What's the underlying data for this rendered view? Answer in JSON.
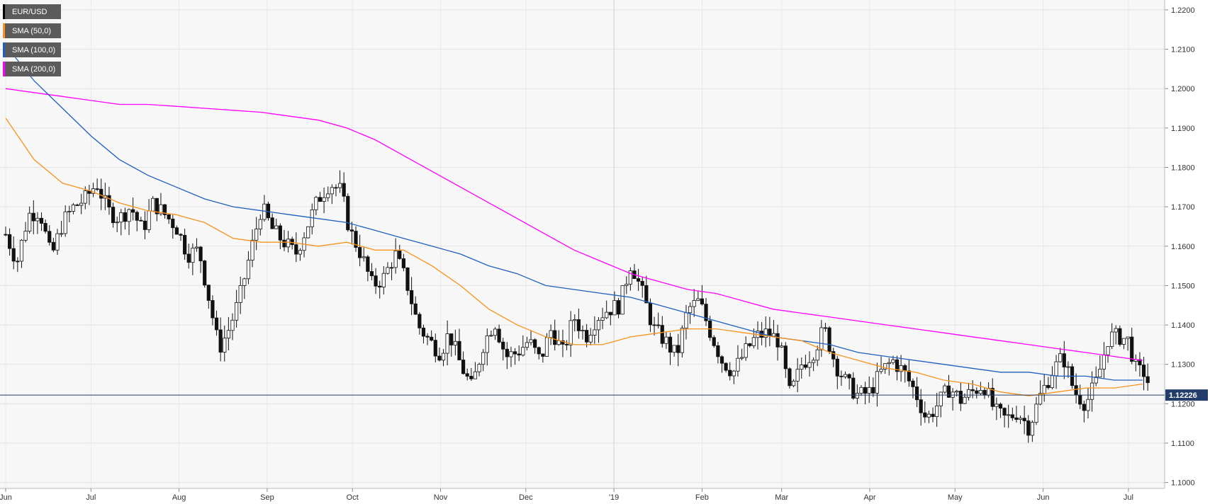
{
  "chart_data": {
    "type": "line",
    "title": "",
    "symbol": "EUR/USD",
    "legend": [
      {
        "label": "EUR/USD",
        "color": "#000000"
      },
      {
        "label": "SMA (50,0)",
        "color": "#f7931e"
      },
      {
        "label": "SMA (100,0)",
        "color": "#1f5fbf"
      },
      {
        "label": "SMA (200,0)",
        "color": "#ff00ff"
      }
    ],
    "y_axis": {
      "min": 1.0985,
      "max": 1.2225,
      "ticks": [
        "1.1000",
        "1.1100",
        "1.1200",
        "1.1300",
        "1.1400",
        "1.1500",
        "1.1600",
        "1.1700",
        "1.1800",
        "1.1900",
        "1.2000",
        "1.2100",
        "1.2200"
      ]
    },
    "x_axis": {
      "ticks": [
        {
          "label": "Jun",
          "day": 0
        },
        {
          "label": "Jul",
          "day": 30
        },
        {
          "label": "Aug",
          "day": 61
        },
        {
          "label": "Sep",
          "day": 92
        },
        {
          "label": "Oct",
          "day": 122
        },
        {
          "label": "Nov",
          "day": 153
        },
        {
          "label": "Dec",
          "day": 183
        },
        {
          "label": "'19",
          "day": 214
        },
        {
          "label": "Feb",
          "day": 245
        },
        {
          "label": "Mar",
          "day": 273
        },
        {
          "label": "Apr",
          "day": 304
        },
        {
          "label": "May",
          "day": 334
        },
        {
          "label": "Jun",
          "day": 365
        },
        {
          "label": "Jul",
          "day": 395
        }
      ],
      "max_day": 405
    },
    "current_price": {
      "value": 1.1222,
      "label": "1.12226"
    },
    "close_series": [
      [
        0,
        1.163
      ],
      [
        4,
        1.156
      ],
      [
        8,
        1.168
      ],
      [
        12,
        1.169
      ],
      [
        16,
        1.157
      ],
      [
        20,
        1.166
      ],
      [
        24,
        1.17
      ],
      [
        28,
        1.172
      ],
      [
        32,
        1.176
      ],
      [
        36,
        1.169
      ],
      [
        40,
        1.167
      ],
      [
        44,
        1.17
      ],
      [
        48,
        1.164
      ],
      [
        52,
        1.171
      ],
      [
        56,
        1.168
      ],
      [
        60,
        1.165
      ],
      [
        64,
        1.158
      ],
      [
        68,
        1.159
      ],
      [
        72,
        1.145
      ],
      [
        75,
        1.134
      ],
      [
        78,
        1.138
      ],
      [
        82,
        1.146
      ],
      [
        86,
        1.158
      ],
      [
        90,
        1.17
      ],
      [
        94,
        1.164
      ],
      [
        98,
        1.161
      ],
      [
        102,
        1.158
      ],
      [
        106,
        1.165
      ],
      [
        110,
        1.172
      ],
      [
        114,
        1.176
      ],
      [
        118,
        1.174
      ],
      [
        121,
        1.164
      ],
      [
        125,
        1.158
      ],
      [
        129,
        1.15
      ],
      [
        133,
        1.152
      ],
      [
        137,
        1.158
      ],
      [
        141,
        1.151
      ],
      [
        145,
        1.14
      ],
      [
        149,
        1.136
      ],
      [
        153,
        1.133
      ],
      [
        156,
        1.138
      ],
      [
        160,
        1.13
      ],
      [
        164,
        1.124
      ],
      [
        168,
        1.135
      ],
      [
        172,
        1.141
      ],
      [
        176,
        1.132
      ],
      [
        180,
        1.133
      ],
      [
        184,
        1.136
      ],
      [
        188,
        1.131
      ],
      [
        192,
        1.139
      ],
      [
        196,
        1.133
      ],
      [
        200,
        1.142
      ],
      [
        204,
        1.137
      ],
      [
        208,
        1.142
      ],
      [
        212,
        1.144
      ],
      [
        216,
        1.145
      ],
      [
        220,
        1.156
      ],
      [
        224,
        1.148
      ],
      [
        228,
        1.139
      ],
      [
        232,
        1.136
      ],
      [
        236,
        1.132
      ],
      [
        240,
        1.144
      ],
      [
        244,
        1.146
      ],
      [
        248,
        1.138
      ],
      [
        252,
        1.131
      ],
      [
        256,
        1.128
      ],
      [
        260,
        1.133
      ],
      [
        264,
        1.137
      ],
      [
        268,
        1.138
      ],
      [
        272,
        1.136
      ],
      [
        276,
        1.122
      ],
      [
        280,
        1.13
      ],
      [
        284,
        1.133
      ],
      [
        288,
        1.139
      ],
      [
        292,
        1.13
      ],
      [
        296,
        1.125
      ],
      [
        300,
        1.122
      ],
      [
        304,
        1.123
      ],
      [
        308,
        1.128
      ],
      [
        312,
        1.131
      ],
      [
        316,
        1.128
      ],
      [
        320,
        1.123
      ],
      [
        324,
        1.116
      ],
      [
        328,
        1.12
      ],
      [
        332,
        1.124
      ],
      [
        336,
        1.121
      ],
      [
        340,
        1.123
      ],
      [
        344,
        1.125
      ],
      [
        348,
        1.118
      ],
      [
        352,
        1.116
      ],
      [
        356,
        1.118
      ],
      [
        360,
        1.114
      ],
      [
        364,
        1.122
      ],
      [
        368,
        1.128
      ],
      [
        372,
        1.132
      ],
      [
        376,
        1.123
      ],
      [
        380,
        1.12
      ],
      [
        384,
        1.126
      ],
      [
        388,
        1.137
      ],
      [
        392,
        1.137
      ],
      [
        395,
        1.136
      ],
      [
        398,
        1.128
      ],
      [
        401,
        1.128
      ],
      [
        403,
        1.1222
      ]
    ],
    "sma50": [
      [
        0,
        1.1925
      ],
      [
        10,
        1.182
      ],
      [
        20,
        1.176
      ],
      [
        30,
        1.174
      ],
      [
        40,
        1.171
      ],
      [
        50,
        1.169
      ],
      [
        60,
        1.168
      ],
      [
        70,
        1.166
      ],
      [
        80,
        1.162
      ],
      [
        90,
        1.161
      ],
      [
        100,
        1.161
      ],
      [
        110,
        1.16
      ],
      [
        120,
        1.161
      ],
      [
        130,
        1.159
      ],
      [
        140,
        1.159
      ],
      [
        150,
        1.155
      ],
      [
        160,
        1.15
      ],
      [
        170,
        1.144
      ],
      [
        180,
        1.14
      ],
      [
        190,
        1.137
      ],
      [
        200,
        1.135
      ],
      [
        210,
        1.135
      ],
      [
        220,
        1.137
      ],
      [
        230,
        1.138
      ],
      [
        240,
        1.139
      ],
      [
        250,
        1.139
      ],
      [
        260,
        1.138
      ],
      [
        270,
        1.137
      ],
      [
        280,
        1.136
      ],
      [
        290,
        1.133
      ],
      [
        300,
        1.131
      ],
      [
        310,
        1.129
      ],
      [
        320,
        1.128
      ],
      [
        330,
        1.126
      ],
      [
        340,
        1.125
      ],
      [
        350,
        1.123
      ],
      [
        360,
        1.122
      ],
      [
        370,
        1.123
      ],
      [
        380,
        1.124
      ],
      [
        390,
        1.124
      ],
      [
        400,
        1.125
      ]
    ],
    "sma100": [
      [
        0,
        1.211
      ],
      [
        10,
        1.202
      ],
      [
        20,
        1.195
      ],
      [
        30,
        1.188
      ],
      [
        40,
        1.182
      ],
      [
        50,
        1.178
      ],
      [
        60,
        1.175
      ],
      [
        70,
        1.172
      ],
      [
        80,
        1.17
      ],
      [
        90,
        1.169
      ],
      [
        100,
        1.168
      ],
      [
        110,
        1.167
      ],
      [
        120,
        1.166
      ],
      [
        130,
        1.164
      ],
      [
        140,
        1.162
      ],
      [
        150,
        1.16
      ],
      [
        160,
        1.158
      ],
      [
        170,
        1.155
      ],
      [
        180,
        1.153
      ],
      [
        190,
        1.15
      ],
      [
        200,
        1.149
      ],
      [
        210,
        1.148
      ],
      [
        220,
        1.147
      ],
      [
        230,
        1.145
      ],
      [
        240,
        1.143
      ],
      [
        250,
        1.141
      ],
      [
        260,
        1.139
      ],
      [
        270,
        1.137
      ],
      [
        280,
        1.136
      ],
      [
        290,
        1.135
      ],
      [
        300,
        1.133
      ],
      [
        310,
        1.132
      ],
      [
        320,
        1.131
      ],
      [
        330,
        1.13
      ],
      [
        340,
        1.129
      ],
      [
        350,
        1.128
      ],
      [
        360,
        1.128
      ],
      [
        370,
        1.127
      ],
      [
        380,
        1.127
      ],
      [
        390,
        1.126
      ],
      [
        400,
        1.126
      ]
    ],
    "sma200": [
      [
        0,
        1.2
      ],
      [
        10,
        1.199
      ],
      [
        20,
        1.198
      ],
      [
        30,
        1.197
      ],
      [
        40,
        1.196
      ],
      [
        50,
        1.196
      ],
      [
        60,
        1.1955
      ],
      [
        70,
        1.195
      ],
      [
        80,
        1.1945
      ],
      [
        90,
        1.194
      ],
      [
        100,
        1.193
      ],
      [
        110,
        1.192
      ],
      [
        120,
        1.19
      ],
      [
        130,
        1.187
      ],
      [
        140,
        1.183
      ],
      [
        150,
        1.179
      ],
      [
        160,
        1.175
      ],
      [
        170,
        1.171
      ],
      [
        180,
        1.167
      ],
      [
        190,
        1.163
      ],
      [
        200,
        1.159
      ],
      [
        210,
        1.156
      ],
      [
        220,
        1.153
      ],
      [
        230,
        1.151
      ],
      [
        240,
        1.149
      ],
      [
        250,
        1.148
      ],
      [
        260,
        1.146
      ],
      [
        270,
        1.144
      ],
      [
        280,
        1.143
      ],
      [
        290,
        1.142
      ],
      [
        300,
        1.141
      ],
      [
        310,
        1.14
      ],
      [
        320,
        1.139
      ],
      [
        330,
        1.138
      ],
      [
        340,
        1.137
      ],
      [
        350,
        1.136
      ],
      [
        360,
        1.135
      ],
      [
        370,
        1.134
      ],
      [
        380,
        1.133
      ],
      [
        390,
        1.132
      ],
      [
        400,
        1.131
      ]
    ]
  }
}
